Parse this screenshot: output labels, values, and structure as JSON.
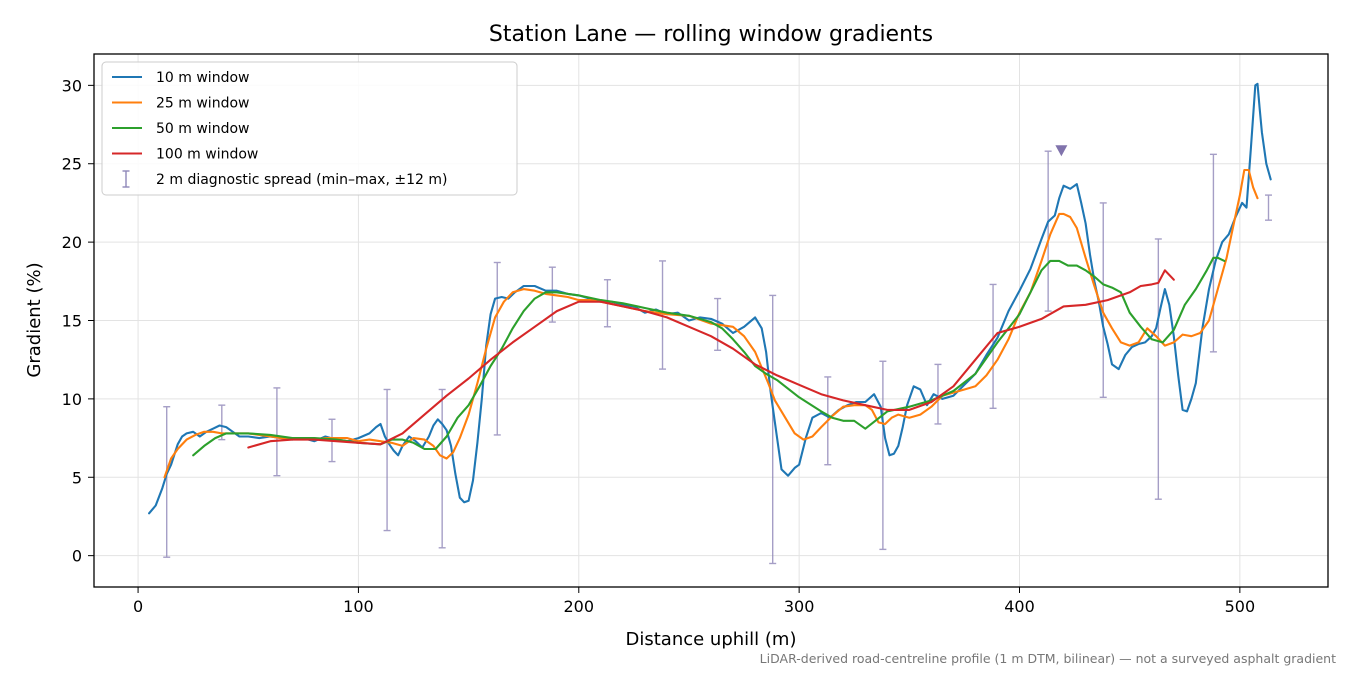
{
  "chart_data": {
    "type": "line",
    "title": "Station Lane — rolling window gradients",
    "xlabel": "Distance uphill (m)",
    "ylabel": "Gradient (%)",
    "xlim": [
      -20,
      540
    ],
    "ylim": [
      -2,
      32
    ],
    "xticks": [
      0,
      100,
      200,
      300,
      400,
      500
    ],
    "yticks": [
      0,
      5,
      10,
      15,
      20,
      25,
      30
    ],
    "grid": true,
    "legend_position": "upper-left",
    "series": [
      {
        "name": "10 m window",
        "color": "#1f77b4",
        "x": [
          5,
          8,
          11,
          13,
          15,
          18,
          20,
          22,
          25,
          28,
          31,
          34,
          37,
          40,
          43,
          46,
          50,
          55,
          60,
          65,
          70,
          75,
          80,
          85,
          90,
          95,
          100,
          105,
          108,
          110,
          112,
          114,
          116,
          118,
          120,
          123,
          126,
          129,
          132,
          134,
          136,
          138,
          140,
          142,
          144,
          146,
          148,
          150,
          152,
          154,
          156,
          158,
          160,
          162,
          165,
          168,
          171,
          175,
          180,
          185,
          190,
          195,
          200,
          205,
          210,
          215,
          220,
          225,
          230,
          235,
          240,
          245,
          250,
          255,
          260,
          265,
          270,
          275,
          280,
          283,
          285,
          287,
          290,
          292,
          295,
          298,
          300,
          303,
          306,
          310,
          314,
          318,
          322,
          326,
          330,
          334,
          337,
          339,
          341,
          343,
          345,
          347,
          349,
          352,
          355,
          358,
          361,
          365,
          370,
          375,
          380,
          385,
          390,
          395,
          400,
          405,
          410,
          413,
          416,
          418,
          420,
          423,
          426,
          428,
          430,
          432,
          434,
          436,
          438,
          440,
          442,
          445,
          448,
          451,
          454,
          457,
          460,
          462,
          464,
          466,
          468,
          470,
          472,
          474,
          476,
          478,
          480,
          483,
          486,
          489,
          492,
          495,
          498,
          501,
          503,
          505,
          507,
          508,
          509,
          510,
          512,
          514
        ],
        "y": [
          2.7,
          3.2,
          4.3,
          5.2,
          5.8,
          7.1,
          7.6,
          7.8,
          7.9,
          7.6,
          7.9,
          8.1,
          8.3,
          8.2,
          7.9,
          7.6,
          7.6,
          7.5,
          7.6,
          7.5,
          7.4,
          7.5,
          7.3,
          7.6,
          7.4,
          7.3,
          7.5,
          7.8,
          8.2,
          8.4,
          7.6,
          7.1,
          6.7,
          6.4,
          7.0,
          7.6,
          7.3,
          6.9,
          7.6,
          8.3,
          8.7,
          8.4,
          8.0,
          7.0,
          5.2,
          3.7,
          3.4,
          3.5,
          4.8,
          7.2,
          10.0,
          13.4,
          15.4,
          16.4,
          16.5,
          16.4,
          16.8,
          17.2,
          17.2,
          16.9,
          16.9,
          16.7,
          16.6,
          16.4,
          16.2,
          16.2,
          16.0,
          15.9,
          15.5,
          15.7,
          15.4,
          15.5,
          15.0,
          15.2,
          15.1,
          14.8,
          14.2,
          14.6,
          15.2,
          14.5,
          13.0,
          10.5,
          7.5,
          5.5,
          5.1,
          5.6,
          5.8,
          7.5,
          8.8,
          9.1,
          8.8,
          9.3,
          9.6,
          9.8,
          9.8,
          10.3,
          9.5,
          7.5,
          6.4,
          6.5,
          7.0,
          8.2,
          9.6,
          10.8,
          10.6,
          9.6,
          10.3,
          10.0,
          10.2,
          10.9,
          11.6,
          12.8,
          13.9,
          15.6,
          16.9,
          18.3,
          20.2,
          21.3,
          21.7,
          22.8,
          23.6,
          23.4,
          23.7,
          22.5,
          21.2,
          19.2,
          17.5,
          16.2,
          14.6,
          13.5,
          12.2,
          11.9,
          12.8,
          13.3,
          13.5,
          13.6,
          14.0,
          14.5,
          15.8,
          17.0,
          16.0,
          14.0,
          11.5,
          9.3,
          9.2,
          10.0,
          11.0,
          14.5,
          17.0,
          18.8,
          20.0,
          20.5,
          21.6,
          22.5,
          22.2,
          26.0,
          30.0,
          30.1,
          28.5,
          27.0,
          25.0,
          24.0
        ]
      },
      {
        "name": "25 m window",
        "color": "#ff7f0e",
        "x": [
          12,
          15,
          18,
          22,
          26,
          30,
          34,
          38,
          42,
          46,
          50,
          55,
          60,
          65,
          70,
          75,
          80,
          85,
          90,
          95,
          100,
          105,
          110,
          115,
          120,
          125,
          130,
          134,
          137,
          140,
          143,
          146,
          150,
          154,
          158,
          162,
          166,
          170,
          175,
          180,
          185,
          190,
          195,
          200,
          205,
          210,
          220,
          230,
          240,
          250,
          260,
          265,
          270,
          275,
          280,
          283,
          286,
          289,
          292,
          295,
          298,
          302,
          306,
          310,
          315,
          320,
          325,
          330,
          333,
          336,
          339,
          342,
          345,
          350,
          355,
          360,
          365,
          370,
          375,
          380,
          385,
          390,
          395,
          400,
          405,
          410,
          414,
          418,
          420,
          423,
          426,
          430,
          434,
          438,
          442,
          446,
          450,
          454,
          458,
          462,
          466,
          470,
          474,
          478,
          482,
          486,
          490,
          494,
          497,
          500,
          502,
          504,
          506,
          508
        ],
        "y": [
          5.0,
          6.2,
          6.8,
          7.4,
          7.7,
          7.9,
          7.9,
          7.8,
          7.8,
          7.8,
          7.8,
          7.7,
          7.6,
          7.5,
          7.5,
          7.5,
          7.4,
          7.5,
          7.5,
          7.5,
          7.3,
          7.4,
          7.3,
          7.2,
          7.0,
          7.5,
          7.4,
          7.0,
          6.4,
          6.2,
          6.6,
          7.5,
          9.0,
          11.0,
          13.2,
          15.2,
          16.2,
          16.8,
          17.0,
          16.9,
          16.7,
          16.6,
          16.5,
          16.3,
          16.3,
          16.2,
          15.9,
          15.6,
          15.4,
          15.3,
          14.8,
          14.7,
          14.6,
          14.0,
          13.0,
          12.0,
          11.0,
          9.9,
          9.2,
          8.5,
          7.8,
          7.4,
          7.6,
          8.2,
          8.9,
          9.5,
          9.6,
          9.6,
          9.3,
          8.5,
          8.4,
          8.8,
          9.0,
          8.8,
          9.0,
          9.5,
          10.2,
          10.4,
          10.6,
          10.8,
          11.5,
          12.5,
          13.8,
          15.5,
          16.8,
          18.8,
          20.5,
          21.8,
          21.8,
          21.6,
          20.9,
          19.0,
          17.2,
          15.5,
          14.5,
          13.6,
          13.4,
          13.6,
          14.5,
          14.0,
          13.4,
          13.6,
          14.1,
          14.0,
          14.2,
          15.0,
          17.0,
          19.0,
          21.0,
          23.0,
          24.6,
          24.6,
          23.5,
          22.8
        ]
      },
      {
        "name": "50 m window",
        "color": "#2ca02c",
        "x": [
          25,
          30,
          35,
          40,
          45,
          50,
          60,
          70,
          80,
          90,
          100,
          110,
          115,
          120,
          125,
          130,
          135,
          140,
          145,
          150,
          155,
          160,
          165,
          170,
          175,
          180,
          185,
          190,
          200,
          210,
          220,
          230,
          240,
          250,
          260,
          265,
          270,
          275,
          280,
          285,
          290,
          300,
          310,
          315,
          320,
          325,
          330,
          340,
          350,
          360,
          370,
          380,
          390,
          400,
          405,
          410,
          414,
          418,
          422,
          426,
          430,
          434,
          438,
          442,
          446,
          450,
          455,
          460,
          465,
          470,
          475,
          480,
          485,
          488,
          490,
          493
        ],
        "y": [
          6.4,
          7.0,
          7.5,
          7.8,
          7.8,
          7.8,
          7.7,
          7.5,
          7.5,
          7.4,
          7.2,
          7.1,
          7.4,
          7.4,
          7.2,
          6.8,
          6.8,
          7.6,
          8.8,
          9.6,
          10.8,
          12.1,
          13.2,
          14.5,
          15.6,
          16.4,
          16.8,
          16.8,
          16.6,
          16.3,
          16.1,
          15.8,
          15.5,
          15.3,
          14.9,
          14.5,
          13.8,
          13.0,
          12.1,
          11.6,
          11.2,
          10.1,
          9.2,
          8.8,
          8.6,
          8.6,
          8.1,
          9.2,
          9.5,
          9.9,
          10.5,
          11.6,
          13.6,
          15.4,
          16.8,
          18.2,
          18.8,
          18.8,
          18.5,
          18.5,
          18.2,
          17.8,
          17.3,
          17.1,
          16.8,
          15.5,
          14.6,
          13.8,
          13.6,
          14.4,
          16.0,
          17.0,
          18.2,
          19.0,
          19.0,
          18.8
        ]
      },
      {
        "name": "100 m window",
        "color": "#d62728",
        "x": [
          50,
          60,
          70,
          80,
          90,
          100,
          110,
          120,
          130,
          140,
          150,
          160,
          170,
          180,
          190,
          200,
          210,
          220,
          230,
          240,
          250,
          260,
          270,
          280,
          290,
          300,
          310,
          320,
          330,
          340,
          350,
          360,
          370,
          380,
          390,
          400,
          410,
          420,
          430,
          440,
          450,
          455,
          460,
          463,
          466,
          470
        ],
        "y": [
          6.9,
          7.3,
          7.4,
          7.4,
          7.3,
          7.2,
          7.1,
          7.8,
          9.0,
          10.2,
          11.3,
          12.5,
          13.6,
          14.6,
          15.6,
          16.2,
          16.2,
          15.9,
          15.6,
          15.2,
          14.6,
          14.0,
          13.2,
          12.2,
          11.5,
          10.9,
          10.3,
          9.9,
          9.6,
          9.3,
          9.3,
          9.8,
          10.8,
          12.5,
          14.2,
          14.6,
          15.1,
          15.9,
          16.0,
          16.3,
          16.8,
          17.2,
          17.3,
          17.4,
          18.2,
          17.6
        ]
      },
      {
        "name": "2 m diagnostic spread (min–max, ±12 m)",
        "color": "#8f87b8",
        "type": "errorbar",
        "points": [
          {
            "x": 13,
            "min": -0.1,
            "max": 9.5
          },
          {
            "x": 38,
            "min": 7.4,
            "max": 9.6
          },
          {
            "x": 63,
            "min": 5.1,
            "max": 10.7
          },
          {
            "x": 88,
            "min": 6.0,
            "max": 8.7
          },
          {
            "x": 113,
            "min": 1.6,
            "max": 10.6
          },
          {
            "x": 138,
            "min": 0.5,
            "max": 10.6
          },
          {
            "x": 163,
            "min": 7.7,
            "max": 18.7
          },
          {
            "x": 188,
            "min": 14.9,
            "max": 18.4
          },
          {
            "x": 213,
            "min": 14.6,
            "max": 17.6
          },
          {
            "x": 238,
            "min": 11.9,
            "max": 18.8
          },
          {
            "x": 263,
            "min": 13.1,
            "max": 16.4
          },
          {
            "x": 288,
            "min": -0.5,
            "max": 16.6
          },
          {
            "x": 313,
            "min": 5.8,
            "max": 11.4
          },
          {
            "x": 338,
            "min": 0.4,
            "max": 12.4
          },
          {
            "x": 363,
            "min": 8.4,
            "max": 12.2
          },
          {
            "x": 388,
            "min": 9.4,
            "max": 17.3
          },
          {
            "x": 413,
            "min": 15.6,
            "max": 25.8
          },
          {
            "x": 438,
            "min": 10.1,
            "max": 22.5
          },
          {
            "x": 463,
            "min": 3.6,
            "max": 20.2
          },
          {
            "x": 488,
            "min": 13.0,
            "max": 25.6
          },
          {
            "x": 513,
            "min": 21.4,
            "max": 23.0
          }
        ]
      }
    ],
    "marker": {
      "x": 419,
      "y": 25.8,
      "color": "#8073ac",
      "shape": "triangle-down"
    },
    "footnote": "LiDAR-derived road-centreline profile (1 m DTM, bilinear) — not a surveyed asphalt gradient"
  }
}
